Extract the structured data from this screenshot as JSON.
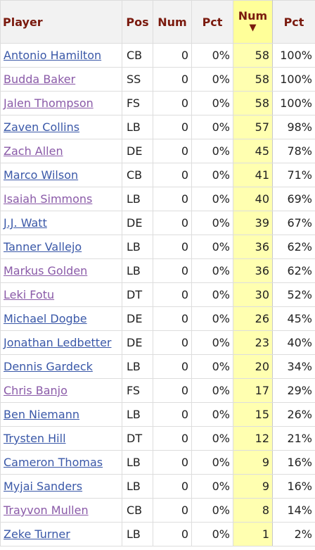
{
  "columns": {
    "player": "Player",
    "pos": "Pos",
    "num": "Num",
    "pct": "Pct",
    "num2": "Num",
    "pct2": "Pct",
    "sort_indicator": "▼"
  },
  "rows": [
    {
      "player": "Antonio Hamilton",
      "visited": false,
      "pos": "CB",
      "num": "0",
      "pct": "0%",
      "num2": "58",
      "pct2": "100%"
    },
    {
      "player": "Budda Baker",
      "visited": true,
      "pos": "SS",
      "num": "0",
      "pct": "0%",
      "num2": "58",
      "pct2": "100%"
    },
    {
      "player": "Jalen Thompson",
      "visited": true,
      "pos": "FS",
      "num": "0",
      "pct": "0%",
      "num2": "58",
      "pct2": "100%"
    },
    {
      "player": "Zaven Collins",
      "visited": false,
      "pos": "LB",
      "num": "0",
      "pct": "0%",
      "num2": "57",
      "pct2": "98%"
    },
    {
      "player": "Zach Allen",
      "visited": true,
      "pos": "DE",
      "num": "0",
      "pct": "0%",
      "num2": "45",
      "pct2": "78%"
    },
    {
      "player": "Marco Wilson",
      "visited": false,
      "pos": "CB",
      "num": "0",
      "pct": "0%",
      "num2": "41",
      "pct2": "71%"
    },
    {
      "player": "Isaiah Simmons",
      "visited": true,
      "pos": "LB",
      "num": "0",
      "pct": "0%",
      "num2": "40",
      "pct2": "69%"
    },
    {
      "player": "J.J. Watt",
      "visited": false,
      "pos": "DE",
      "num": "0",
      "pct": "0%",
      "num2": "39",
      "pct2": "67%"
    },
    {
      "player": "Tanner Vallejo",
      "visited": false,
      "pos": "LB",
      "num": "0",
      "pct": "0%",
      "num2": "36",
      "pct2": "62%"
    },
    {
      "player": "Markus Golden",
      "visited": true,
      "pos": "LB",
      "num": "0",
      "pct": "0%",
      "num2": "36",
      "pct2": "62%"
    },
    {
      "player": "Leki Fotu",
      "visited": true,
      "pos": "DT",
      "num": "0",
      "pct": "0%",
      "num2": "30",
      "pct2": "52%"
    },
    {
      "player": "Michael Dogbe",
      "visited": false,
      "pos": "DE",
      "num": "0",
      "pct": "0%",
      "num2": "26",
      "pct2": "45%"
    },
    {
      "player": "Jonathan Ledbetter",
      "visited": false,
      "pos": "DE",
      "num": "0",
      "pct": "0%",
      "num2": "23",
      "pct2": "40%"
    },
    {
      "player": "Dennis Gardeck",
      "visited": false,
      "pos": "LB",
      "num": "0",
      "pct": "0%",
      "num2": "20",
      "pct2": "34%"
    },
    {
      "player": "Chris Banjo",
      "visited": true,
      "pos": "FS",
      "num": "0",
      "pct": "0%",
      "num2": "17",
      "pct2": "29%"
    },
    {
      "player": "Ben Niemann",
      "visited": false,
      "pos": "LB",
      "num": "0",
      "pct": "0%",
      "num2": "15",
      "pct2": "26%"
    },
    {
      "player": "Trysten Hill",
      "visited": false,
      "pos": "DT",
      "num": "0",
      "pct": "0%",
      "num2": "12",
      "pct2": "21%"
    },
    {
      "player": "Cameron Thomas",
      "visited": false,
      "pos": "LB",
      "num": "0",
      "pct": "0%",
      "num2": "9",
      "pct2": "16%"
    },
    {
      "player": "Myjai Sanders",
      "visited": false,
      "pos": "LB",
      "num": "0",
      "pct": "0%",
      "num2": "9",
      "pct2": "16%"
    },
    {
      "player": "Trayvon Mullen",
      "visited": true,
      "pos": "CB",
      "num": "0",
      "pct": "0%",
      "num2": "8",
      "pct2": "14%"
    },
    {
      "player": "Zeke Turner",
      "visited": false,
      "pos": "LB",
      "num": "0",
      "pct": "0%",
      "num2": "1",
      "pct2": "2%"
    }
  ]
}
